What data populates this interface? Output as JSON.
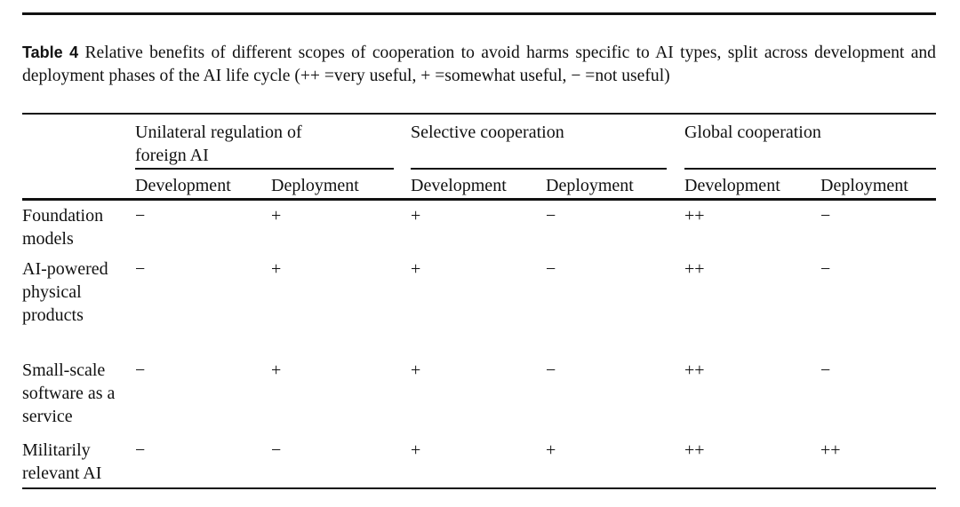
{
  "caption": {
    "label": "Table 4",
    "text": "Relative benefits of different scopes of cooperation to avoid harms specific to AI types, split across development and deployment phases of the AI life cycle (++ =very useful, + =somewhat useful, − =not useful)"
  },
  "table": {
    "groups": [
      "Unilateral regulation of foreign AI",
      "Selective cooperation",
      "Global cooperation"
    ],
    "subheaders": [
      "Development",
      "Deployment",
      "Development",
      "Deployment",
      "Development",
      "Deployment"
    ],
    "rows": [
      {
        "label": "Foundation models",
        "cells": [
          "−",
          "+",
          "+",
          "−",
          "++",
          "−"
        ]
      },
      {
        "label": "AI-powered physical products",
        "cells": [
          "−",
          "+",
          "+",
          "−",
          "++",
          "−"
        ]
      },
      {
        "label": "Small-scale software as a service",
        "cells": [
          "−",
          "+",
          "+",
          "−",
          "++",
          "−"
        ]
      },
      {
        "label": "Militarily relevant AI",
        "cells": [
          "−",
          "−",
          "+",
          "+",
          "++",
          "++"
        ]
      }
    ]
  }
}
